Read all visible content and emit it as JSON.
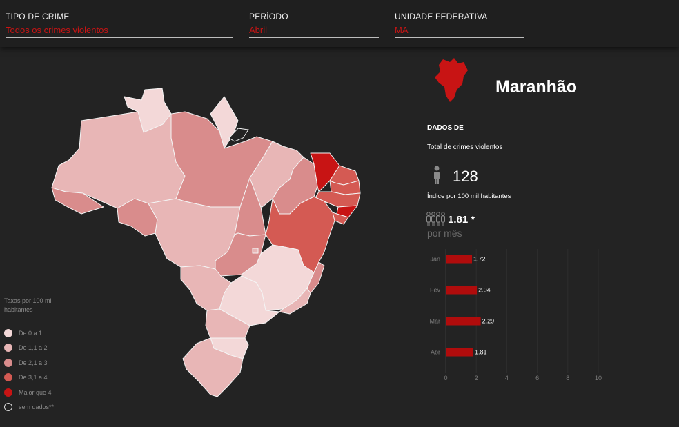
{
  "filters": {
    "crime_type": {
      "label": "TIPO DE CRIME",
      "value": "Todos os crimes violentos"
    },
    "period": {
      "label": "PERÍODO",
      "value": "Abril"
    },
    "state": {
      "label": "UNIDADE FEDERATIVA",
      "value": "MA"
    }
  },
  "colors": {
    "level0": "#f3d8d8",
    "level1": "#e8b6b6",
    "level2": "#d98c8c",
    "level3": "#d45a53",
    "level4": "#c81414",
    "accent": "#b00c0c"
  },
  "legend": {
    "title": "Taxas por 100 mil habitantes",
    "items": [
      {
        "label": "De 0 a 1",
        "color": "#f3d8d8"
      },
      {
        "label": "De 1,1 a 2",
        "color": "#e8b6b6"
      },
      {
        "label": "De 2,1 a 3",
        "color": "#d98c8c"
      },
      {
        "label": "De 3,1 a 4",
        "color": "#d45a53"
      },
      {
        "label": "Maior que 4",
        "color": "#c81414"
      },
      {
        "label": "sem dados**",
        "color": "none"
      }
    ]
  },
  "detail": {
    "state_name": "Maranhão",
    "data_heading": "DADOS DE",
    "crime_type": "Total de crimes violentos",
    "count": "128",
    "index_label": "Índice por 100 mil habitantes",
    "rate": "1.81 *",
    "per_month": "por mês",
    "icons": [
      "state-silhouette-icon",
      "person-icon",
      "people-group-icon"
    ]
  },
  "chart_data": {
    "type": "bar",
    "orientation": "horizontal",
    "categories": [
      "Jan",
      "Fev",
      "Mar",
      "Abr"
    ],
    "values": [
      1.72,
      2.04,
      2.29,
      1.81
    ],
    "value_labels": [
      "1.72",
      "2.04",
      "2.29",
      "1.81"
    ],
    "xlim": [
      0,
      10
    ],
    "xticks": [
      0,
      2,
      4,
      6,
      8,
      10
    ],
    "grid": true,
    "bar_color": "#b00c0c",
    "title": "",
    "xlabel": "",
    "ylabel": ""
  }
}
